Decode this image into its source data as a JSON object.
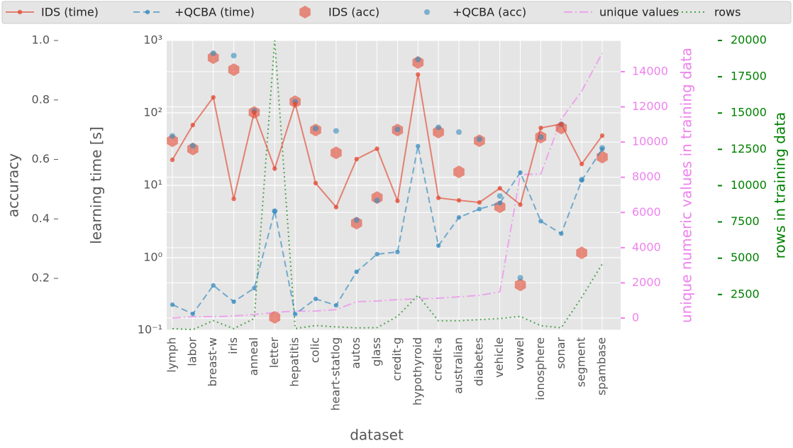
{
  "chart_data": {
    "type": "line",
    "xlabel": "dataset",
    "ylabel": "learning time [s]",
    "y2label": "accuracy",
    "y3label": "unique numeric values in training data",
    "y4label": "rows in training data",
    "yscale": "log",
    "grid": true,
    "legend": "top",
    "categories": [
      "lymph",
      "labor",
      "breast-w",
      "iris",
      "anneal",
      "letter",
      "hepatitis",
      "colic",
      "heart-statlog",
      "autos",
      "glass",
      "credit-g",
      "hypothyroid",
      "credit-a",
      "australian",
      "diabetes",
      "vehicle",
      "vowel",
      "ionosphere",
      "sonar",
      "segment",
      "spambase"
    ],
    "ylim": [
      0.1,
      1000
    ],
    "yticks": [
      {
        "value": 0.1,
        "label": "10⁻¹"
      },
      {
        "value": 1,
        "label": "10⁰"
      },
      {
        "value": 10,
        "label": "10¹"
      },
      {
        "value": 100,
        "label": "10²"
      },
      {
        "value": 1000,
        "label": "10³"
      }
    ],
    "y2lim": [
      0.026,
      1.0
    ],
    "y2ticks": [
      0.2,
      0.4,
      0.6,
      0.8,
      {
        "value": 1,
        "label": "1.0"
      }
    ],
    "y3lim": [
      -686,
      15773
    ],
    "y3ticks": [
      0,
      2000,
      4000,
      6000,
      8000,
      10000,
      12000,
      14000
    ],
    "y3color": "#ee82ee",
    "y4lim": [
      45,
      20000
    ],
    "y4ticks": [
      2500,
      5000,
      7500,
      10000,
      12500,
      15000,
      17500,
      20000
    ],
    "y4color": "#008000",
    "series": [
      {
        "name": "IDS (time)",
        "kind": "line",
        "axis": "y",
        "color": "#e24a33",
        "dash": "",
        "marker": "circle",
        "values": [
          22.5,
          68,
          164,
          6.5,
          102,
          17,
          134,
          10.7,
          5.0,
          23,
          32,
          6.1,
          339,
          6.7,
          6.2,
          5.8,
          9.1,
          5.4,
          62,
          70,
          19.7,
          48.5
        ]
      },
      {
        "name": "+QCBA (time)",
        "kind": "line",
        "axis": "y",
        "color": "#348abd",
        "dash": "9 5",
        "marker": "circle",
        "values": [
          0.225,
          0.168,
          0.415,
          0.247,
          0.38,
          4.4,
          0.166,
          0.27,
          0.22,
          0.64,
          1.12,
          1.2,
          34.7,
          1.47,
          3.6,
          4.7,
          5.7,
          15,
          3.2,
          2.15,
          11.7,
          31.6
        ]
      },
      {
        "name": "IDS (acc)",
        "kind": "scatter",
        "axis": "y2",
        "color": "#e24a33",
        "marker": "hexagon",
        "values": [
          0.663,
          0.635,
          0.942,
          0.902,
          0.758,
          0.069,
          0.794,
          0.699,
          0.622,
          0.386,
          0.472,
          0.699,
          0.926,
          0.692,
          0.558,
          0.663,
          0.441,
          0.178,
          0.675,
          0.706,
          0.286,
          0.608
        ]
      },
      {
        "name": "+QCBA (acc)",
        "kind": "scatter",
        "axis": "y2",
        "color": "#348abd",
        "marker": "dot",
        "values": [
          0.679,
          0.646,
          0.957,
          0.949,
          0.763,
          0.426,
          0.794,
          0.704,
          0.696,
          0.396,
          0.462,
          0.701,
          0.936,
          0.708,
          0.692,
          0.668,
          0.477,
          0.202,
          0.675,
          0.718,
          0.532,
          0.639
        ]
      },
      {
        "name": "unique values",
        "kind": "line",
        "axis": "y3",
        "color": "#ee82ee",
        "dash": "12 4 2 4",
        "marker": "",
        "values": [
          0,
          80,
          80,
          120,
          200,
          320,
          400,
          400,
          480,
          930,
          970,
          1050,
          1090,
          1130,
          1210,
          1290,
          1490,
          8150,
          8190,
          11300,
          12900,
          15050
        ]
      },
      {
        "name": "rows",
        "kind": "line",
        "axis": "y4",
        "color": "#008000",
        "dash": "2 4",
        "marker": "",
        "values": [
          148,
          80,
          700,
          150,
          840,
          20000,
          155,
          360,
          270,
          200,
          214,
          1000,
          2450,
          690,
          690,
          768,
          846,
          990,
          351,
          208,
          2310,
          4600
        ]
      }
    ]
  }
}
